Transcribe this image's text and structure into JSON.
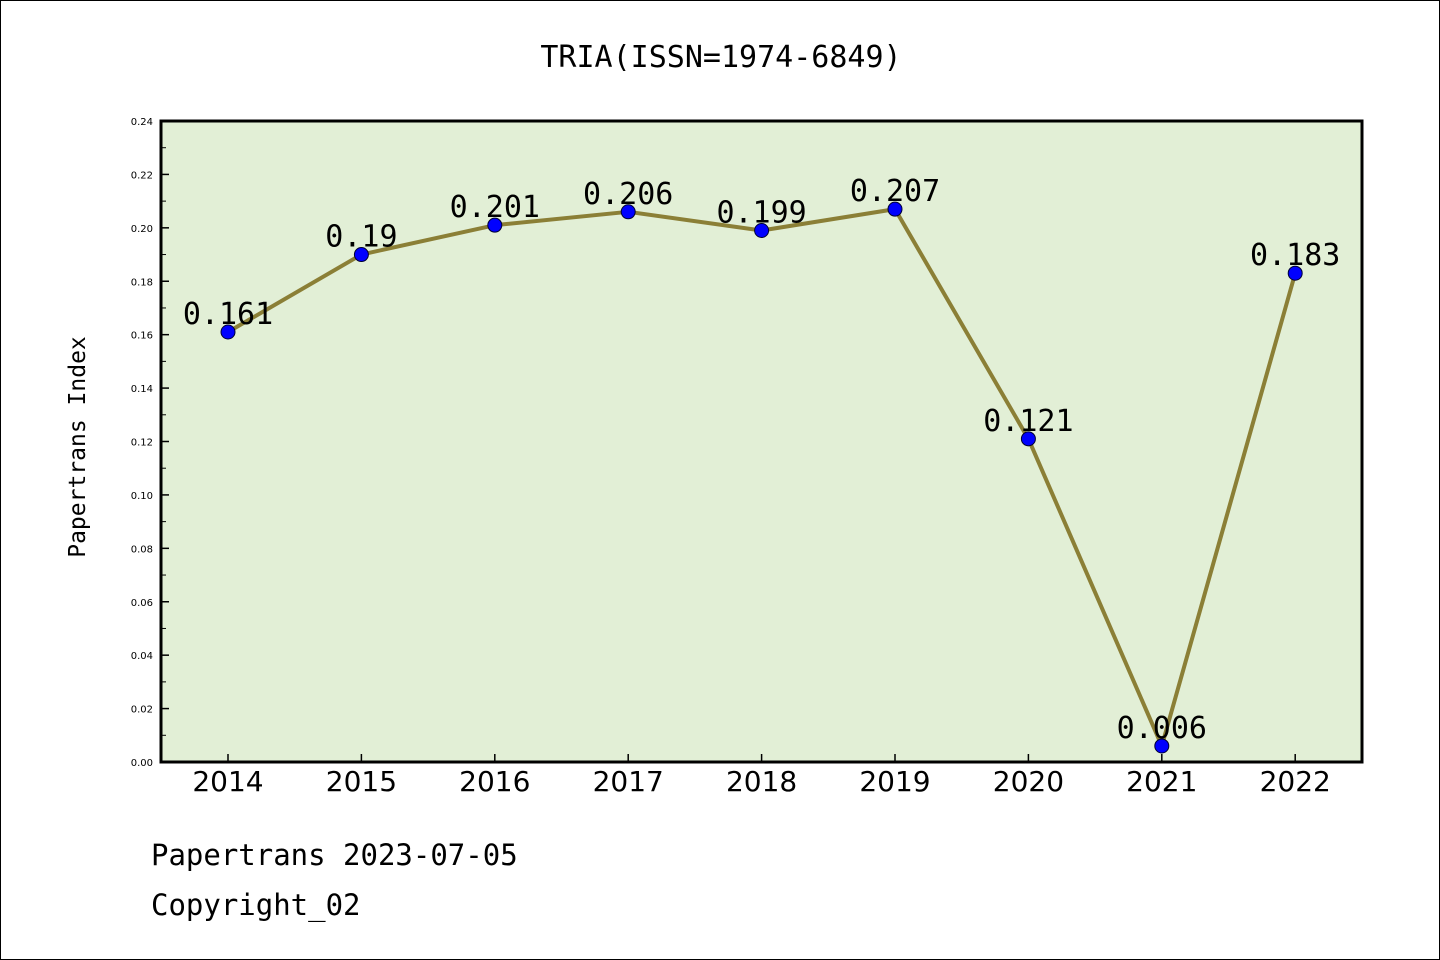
{
  "chart_data": {
    "type": "line",
    "title": "TRIA(ISSN=1974-6849)",
    "ylabel": "Papertrans Index",
    "xlabel": "",
    "categories": [
      "2014",
      "2015",
      "2016",
      "2017",
      "2018",
      "2019",
      "2020",
      "2021",
      "2022"
    ],
    "series": [
      {
        "values": [
          0.161,
          0.19,
          0.201,
          0.206,
          0.199,
          0.207,
          0.121,
          0.006,
          0.183
        ],
        "data_labels": [
          "0.161",
          "0.19",
          "0.201",
          "0.206",
          "0.199",
          "0.207",
          "0.121",
          "0.006",
          "0.183"
        ]
      }
    ],
    "ylim": [
      0,
      0.24
    ],
    "y_ticks": [
      "0.00",
      "0.02",
      "0.04",
      "0.06",
      "0.08",
      "0.10",
      "0.12",
      "0.14",
      "0.16",
      "0.18",
      "0.20",
      "0.22",
      "0.24"
    ],
    "grid": false,
    "colors": {
      "plot_background": "#e2efd6",
      "line": "#8b7f36",
      "marker": "#0000ff"
    }
  },
  "footer": {
    "line1": "Papertrans 2023-07-05",
    "line2": "Copyright_02"
  }
}
